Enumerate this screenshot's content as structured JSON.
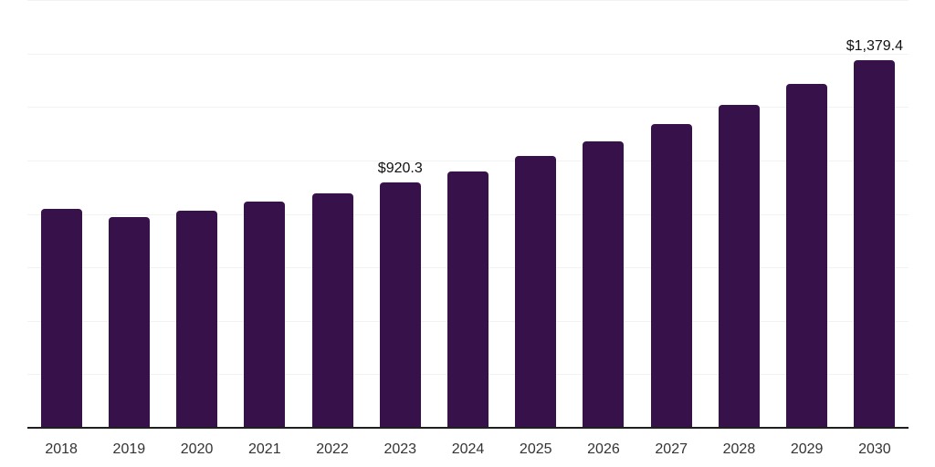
{
  "chart_data": {
    "type": "bar",
    "title": "",
    "xlabel": "",
    "ylabel": "",
    "categories": [
      "2018",
      "2019",
      "2020",
      "2021",
      "2022",
      "2023",
      "2024",
      "2025",
      "2026",
      "2027",
      "2028",
      "2029",
      "2030"
    ],
    "values": [
      822,
      793,
      814,
      850,
      881,
      920.3,
      963,
      1020,
      1075,
      1139,
      1210,
      1290,
      1379.4
    ],
    "data_labels": [
      "",
      "",
      "",
      "",
      "",
      "$920.3",
      "",
      "",
      "",
      "",
      "",
      "",
      "$1,379.4"
    ],
    "ylim": [
      0,
      1600
    ],
    "grid_step": 200,
    "grid": "horizontal",
    "legend": "none",
    "y_tick_labels_visible": false,
    "bar_color": "#36114a",
    "gridline_color": "#f2f2f2",
    "axis_color": "#1f1f1f",
    "data_label_color": "#111111",
    "tick_label_color": "#333333"
  }
}
